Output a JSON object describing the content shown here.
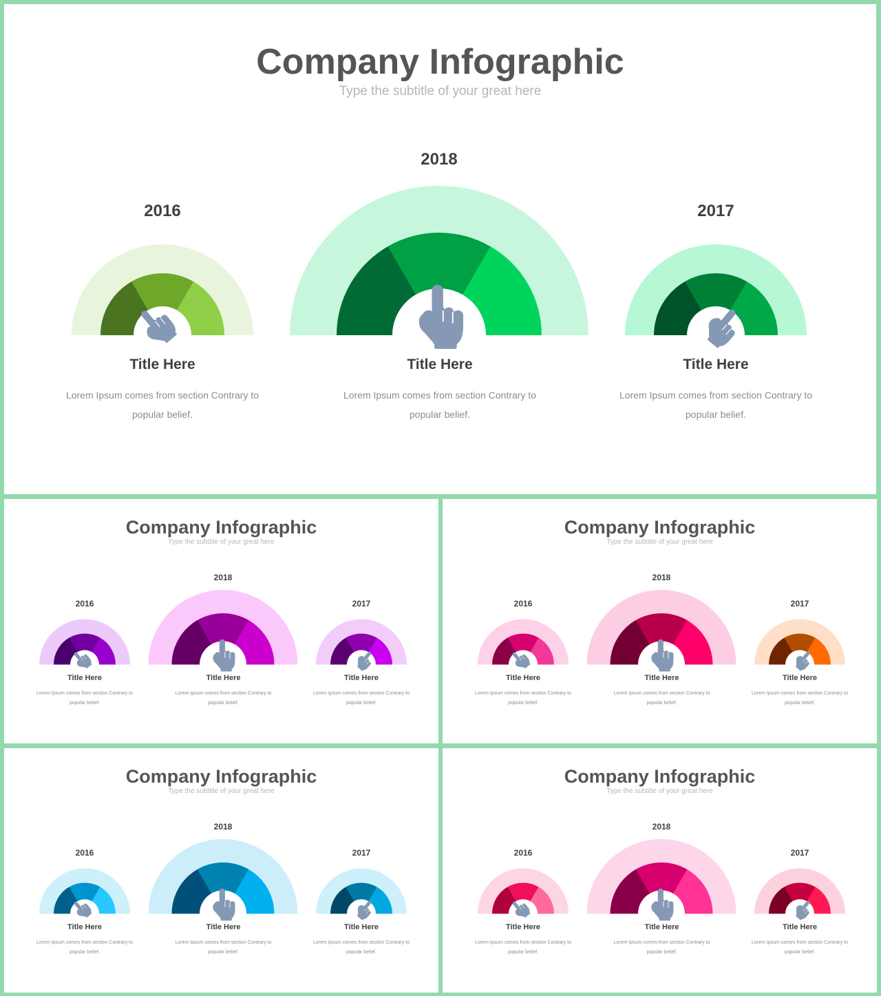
{
  "slides": [
    {
      "title": "Company Infographic",
      "subtitle": "Type the subtitle of your great here",
      "items": [
        {
          "year": "2016",
          "title": "Title Here",
          "text": "Lorem Ipsum comes from section Contrary to popular belief.",
          "colors": {
            "outer": "#e8f5dc",
            "seg1": "#4b7420",
            "seg2": "#6ea82b",
            "seg3": "#8fcf48"
          },
          "icon": "pointing-hand-icon"
        },
        {
          "year": "2018",
          "title": "Title Here",
          "text": "Lorem Ipsum comes from section Contrary to popular belief.",
          "colors": {
            "outer": "#c6f7dc",
            "seg1": "#006b34",
            "seg2": "#00a045",
            "seg3": "#00d45c"
          },
          "icon": "pointing-hand-icon"
        },
        {
          "year": "2017",
          "title": "Title Here",
          "text": "Lorem Ipsum comes from section Contrary to popular belief.",
          "colors": {
            "outer": "#b6f7d6",
            "seg1": "#005229",
            "seg2": "#008037",
            "seg3": "#00a847"
          },
          "icon": "pointing-hand-icon"
        }
      ]
    },
    {
      "title": "Company Infographic",
      "subtitle": "Type the subtitle of your great here",
      "items": [
        {
          "year": "2016",
          "title": "Title Here",
          "text": "Lorem Ipsum comes from section Contrary to popular belief.",
          "colors": {
            "outer": "#eccbfa",
            "seg1": "#4a006e",
            "seg2": "#72009e",
            "seg3": "#9a00cc"
          },
          "icon": "pointing-hand-icon"
        },
        {
          "year": "2018",
          "title": "Title Here",
          "text": "Lorem Ipsum comes from section Contrary to popular belief.",
          "colors": {
            "outer": "#fbc8fb",
            "seg1": "#640064",
            "seg2": "#990099",
            "seg3": "#cc00cc"
          },
          "icon": "pointing-hand-icon"
        },
        {
          "year": "2017",
          "title": "Title Here",
          "text": "Lorem Ipsum comes from section Contrary to popular belief.",
          "colors": {
            "outer": "#f2cdfa",
            "seg1": "#5c0070",
            "seg2": "#8f00b0",
            "seg3": "#c800f0"
          },
          "icon": "pointing-hand-icon"
        }
      ]
    },
    {
      "title": "Company Infographic",
      "subtitle": "Type the subtitle of your great here",
      "items": [
        {
          "year": "2016",
          "title": "Title Here",
          "text": "Lorem Ipsum comes from section Contrary to popular belief.",
          "colors": {
            "outer": "#fdd1e8",
            "seg1": "#8c0048",
            "seg2": "#d6006e",
            "seg3": "#f2399a"
          },
          "icon": "pointing-hand-icon"
        },
        {
          "year": "2018",
          "title": "Title Here",
          "text": "Lorem Ipsum comes from section Contrary to popular belief.",
          "colors": {
            "outer": "#fdcde3",
            "seg1": "#730032",
            "seg2": "#b8004a",
            "seg3": "#ff006a"
          },
          "icon": "pointing-hand-icon"
        },
        {
          "year": "2017",
          "title": "Title Here",
          "text": "Lorem Ipsum comes from section Contrary to popular belief.",
          "colors": {
            "outer": "#ffdfc8",
            "seg1": "#6e2600",
            "seg2": "#b34d00",
            "seg3": "#ff6a00"
          },
          "icon": "pointing-hand-icon"
        }
      ]
    },
    {
      "title": "Company Infographic",
      "subtitle": "Type the subtitle of your great here",
      "items": [
        {
          "year": "2016",
          "title": "Title Here",
          "text": "Lorem Ipsum comes from section Contrary to popular belief.",
          "colors": {
            "outer": "#cdf0fb",
            "seg1": "#005f8c",
            "seg2": "#0095cf",
            "seg3": "#28c8ff"
          },
          "icon": "pointing-hand-icon"
        },
        {
          "year": "2018",
          "title": "Title Here",
          "text": "Lorem Ipsum comes from section Contrary to popular belief.",
          "colors": {
            "outer": "#cbeefa",
            "seg1": "#00507a",
            "seg2": "#0082b2",
            "seg3": "#00b0ee"
          },
          "icon": "pointing-hand-icon"
        },
        {
          "year": "2017",
          "title": "Title Here",
          "text": "Lorem Ipsum comes from section Contrary to popular belief.",
          "colors": {
            "outer": "#cdf0fb",
            "seg1": "#004866",
            "seg2": "#007aa3",
            "seg3": "#00a8e0"
          },
          "icon": "pointing-hand-icon"
        }
      ]
    },
    {
      "title": "Company Infographic",
      "subtitle": "Type the subtitle of your great here",
      "items": [
        {
          "year": "2016",
          "title": "Title Here",
          "text": "Lorem Ipsum comes from section Contrary to popular belief.",
          "colors": {
            "outer": "#fdd6e5",
            "seg1": "#b0003a",
            "seg2": "#f0105a",
            "seg3": "#ff6a9a"
          },
          "icon": "pointing-hand-icon"
        },
        {
          "year": "2018",
          "title": "Title Here",
          "text": "Lorem Ipsum comes from section Contrary to popular belief.",
          "colors": {
            "outer": "#fdd6ea",
            "seg1": "#8a0048",
            "seg2": "#d6006e",
            "seg3": "#ff3393"
          },
          "icon": "pointing-hand-icon"
        },
        {
          "year": "2017",
          "title": "Title Here",
          "text": "Lorem Ipsum comes from section Contrary to popular belief.",
          "colors": {
            "outer": "#fdd1dd",
            "seg1": "#7a0025",
            "seg2": "#c40040",
            "seg3": "#ff1a55"
          },
          "icon": "pointing-hand-icon"
        }
      ]
    }
  ],
  "colors": {
    "frame": "#93d9ae",
    "title": "#555555",
    "subtitle": "#b5b5b5",
    "heading": "#404040",
    "body": "#8c8c8c",
    "hand": "#8599b4"
  }
}
